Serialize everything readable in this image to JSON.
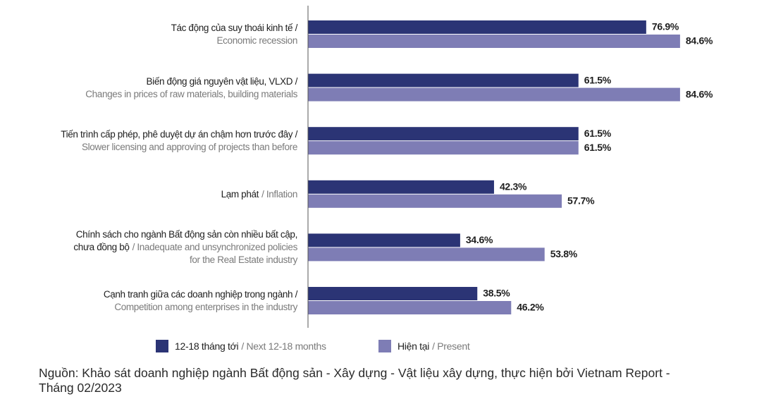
{
  "chart_data": {
    "type": "bar",
    "orientation": "horizontal",
    "categories": [
      "Tác động của suy thoái kinh tế /",
      "Biến động giá nguyên vật liệu, VLXD /",
      "Tiến trình cấp phép, phê duyệt dự án chậm hơn trước đây /",
      "Lạm phát",
      "Chính sách cho ngành Bất động sản còn nhiều bất cập,\nchưa đồng bộ",
      "Cạnh tranh giữa các doanh nghiệp trong ngành /"
    ],
    "categories_en": [
      "Economic recession",
      "Changes in prices of raw materials, building materials",
      "Slower licensing and approving of projects than before",
      "/ Inflation",
      "/ Inadequate and unsynchronized policies\nfor the Real Estate industry",
      "Competition among enterprises in the industry"
    ],
    "series": [
      {
        "name": "12-18 tháng tới",
        "name_en": "/ Next 12-18 months",
        "color": "#2b3475",
        "values": [
          76.9,
          61.5,
          61.5,
          42.3,
          34.6,
          38.5
        ],
        "value_labels": [
          "76.9%",
          "61.5%",
          "61.5%",
          "42.3%",
          "34.6%",
          "38.5%"
        ]
      },
      {
        "name": "Hiện tại",
        "name_en": "/ Present",
        "color": "#7e7db5",
        "values": [
          84.6,
          84.6,
          61.5,
          57.7,
          53.8,
          46.2
        ],
        "value_labels": [
          "84.6%",
          "84.6%",
          "61.5%",
          "57.7%",
          "53.8%",
          "46.2%"
        ]
      }
    ],
    "xlim": [
      0,
      100
    ],
    "source": "Nguồn: Khảo sát doanh nghiệp ngành Bất động sản - Xây dựng - Vật liệu xây dựng, thực hiện bởi Vietnam Report - Tháng 02/2023"
  }
}
